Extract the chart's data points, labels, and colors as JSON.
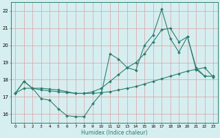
{
  "xlabel": "Humidex (Indice chaleur)",
  "x": [
    0,
    1,
    2,
    3,
    4,
    5,
    6,
    7,
    8,
    9,
    10,
    11,
    12,
    13,
    14,
    15,
    16,
    17,
    18,
    19,
    20,
    21,
    22,
    23
  ],
  "line1": [
    17.2,
    17.9,
    17.5,
    16.9,
    16.8,
    16.3,
    15.9,
    15.85,
    15.85,
    16.6,
    17.2,
    19.5,
    19.2,
    18.7,
    18.55,
    20.0,
    20.6,
    22.1,
    20.4,
    19.6,
    20.5,
    18.6,
    18.2,
    18.2
  ],
  "line2": [
    17.2,
    17.5,
    17.5,
    17.4,
    17.35,
    17.3,
    17.25,
    17.2,
    17.2,
    17.2,
    17.25,
    17.3,
    17.4,
    17.5,
    17.6,
    17.75,
    17.9,
    18.05,
    18.2,
    18.35,
    18.5,
    18.6,
    18.7,
    18.15
  ],
  "line3": [
    17.2,
    17.9,
    17.5,
    17.5,
    17.45,
    17.4,
    17.3,
    17.2,
    17.2,
    17.3,
    17.5,
    17.9,
    18.3,
    18.7,
    19.0,
    19.5,
    20.2,
    20.9,
    21.0,
    20.2,
    20.5,
    18.7,
    18.2,
    18.2
  ],
  "color": "#2a7d6e",
  "bg_color": "#d6eef0",
  "grid_color": "#d8a0a0",
  "ylim": [
    15.5,
    22.5
  ],
  "xlim": [
    -0.5,
    23.5
  ],
  "yticks": [
    16,
    17,
    18,
    19,
    20,
    21,
    22
  ],
  "xticks": [
    0,
    1,
    2,
    3,
    4,
    5,
    6,
    7,
    8,
    9,
    10,
    11,
    12,
    13,
    14,
    15,
    16,
    17,
    18,
    19,
    20,
    21,
    22,
    23
  ]
}
